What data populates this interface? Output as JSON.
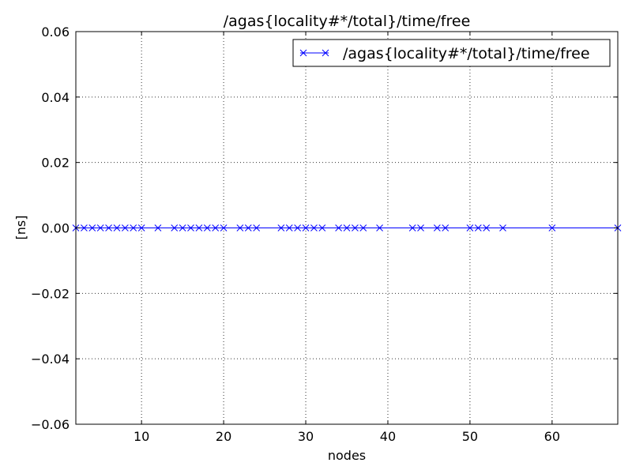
{
  "chart_data": {
    "type": "line",
    "title": "/agas{locality#*/total}/time/free",
    "xlabel": "nodes",
    "ylabel": "[ns]",
    "xlim": [
      2,
      68
    ],
    "ylim": [
      -0.06,
      0.06
    ],
    "x_ticks": [
      10,
      20,
      30,
      40,
      50,
      60
    ],
    "x_tick_labels": [
      "10",
      "20",
      "30",
      "40",
      "50",
      "60"
    ],
    "y_ticks": [
      -0.06,
      -0.04,
      -0.02,
      0.0,
      0.02,
      0.04,
      0.06
    ],
    "y_tick_labels": [
      "−0.06",
      "−0.04",
      "−0.02",
      "0.00",
      "0.02",
      "0.04",
      "0.06"
    ],
    "grid": true,
    "legend_position": "top-right",
    "series": [
      {
        "name": "/agas{locality#*/total}/time/free",
        "color": "#0000ff",
        "marker": "x",
        "x": [
          2,
          3,
          4,
          5,
          6,
          7,
          8,
          9,
          10,
          12,
          14,
          15,
          16,
          17,
          18,
          19,
          20,
          22,
          23,
          24,
          27,
          28,
          29,
          30,
          31,
          32,
          34,
          35,
          36,
          37,
          39,
          43,
          44,
          46,
          47,
          50,
          51,
          52,
          54,
          60,
          68
        ],
        "y": [
          0,
          0,
          0,
          0,
          0,
          0,
          0,
          0,
          0,
          0,
          0,
          0,
          0,
          0,
          0,
          0,
          0,
          0,
          0,
          0,
          0,
          0,
          0,
          0,
          0,
          0,
          0,
          0,
          0,
          0,
          0,
          0,
          0,
          0,
          0,
          0,
          0,
          0,
          0,
          0,
          0
        ]
      }
    ]
  }
}
